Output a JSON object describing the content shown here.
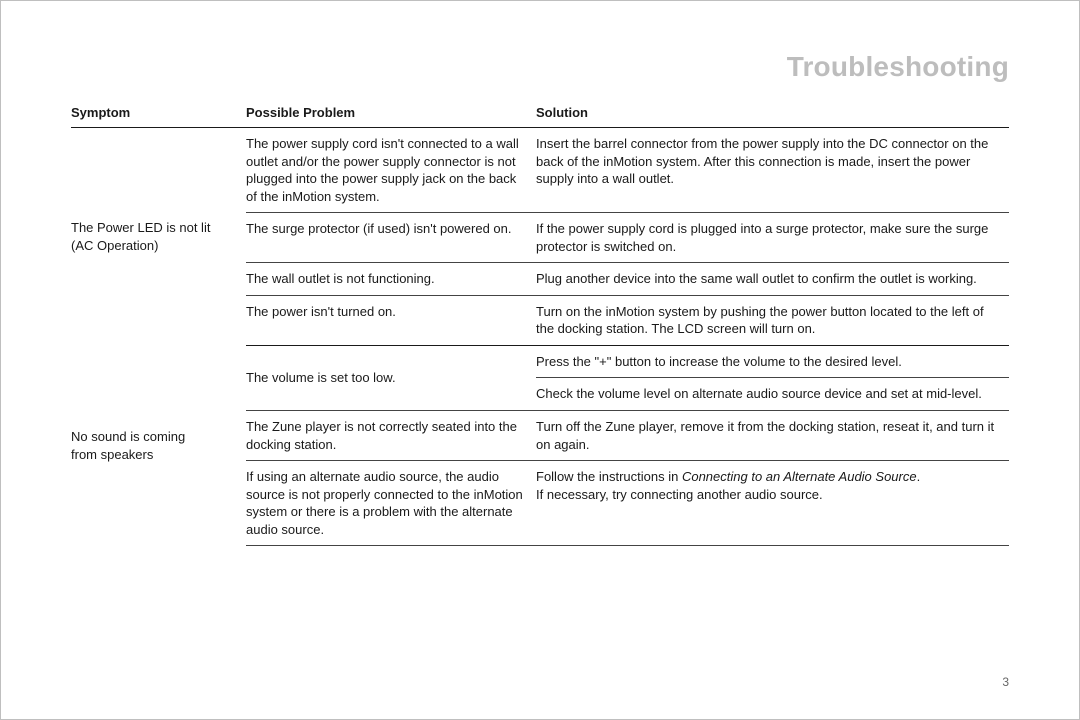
{
  "title": "Troubleshooting",
  "pageNumber": "3",
  "headers": {
    "symptom": "Symptom",
    "problem": "Possible Problem",
    "solution": "Solution"
  },
  "group1": {
    "symptom_l1": "The Power LED is not lit",
    "symptom_l2": "(AC Operation)",
    "rows": [
      {
        "problem": "The power supply cord isn't connected to a wall outlet and/or the power supply connector is not plugged into the power supply jack on the back of the inMotion system.",
        "solution": "Insert the barrel connector from the power supply into the DC connector on the back of the inMotion system. After this connection is made, insert the power supply into a wall outlet."
      },
      {
        "problem": "The surge protector (if used) isn't powered on.",
        "solution": "If the power supply cord is plugged into a surge protector, make sure the surge protector is switched on."
      },
      {
        "problem": "The wall outlet is not functioning.",
        "solution": "Plug another device into the same wall outlet to confirm the outlet is working."
      },
      {
        "problem": "The power isn't turned on.",
        "solution": "Turn on the inMotion system by pushing the power button located to the left of the docking station. The LCD screen will turn on."
      }
    ]
  },
  "group2": {
    "symptom_l1": "No sound is coming",
    "symptom_l2": "from speakers",
    "rows": [
      {
        "problem": "The volume is set too low.",
        "solution_a": "Press the \"+\" button to increase the volume to the desired level.",
        "solution_b": "Check the volume level on alternate audio source device and set at mid-level."
      },
      {
        "problem": "The Zune player is not correctly seated into the docking station.",
        "solution": "Turn off the Zune player, remove it from the docking station, reseat it, and turn it on again."
      },
      {
        "problem": "If using an alternate audio source, the audio source is not properly connected to the inMotion system or there is a problem with the alternate audio source.",
        "solution_pre": "Follow the instructions in ",
        "solution_ital": "Connecting to an Alternate Audio Source",
        "solution_post": ".",
        "solution_line2": "If necessary, try connecting another audio source."
      }
    ]
  }
}
